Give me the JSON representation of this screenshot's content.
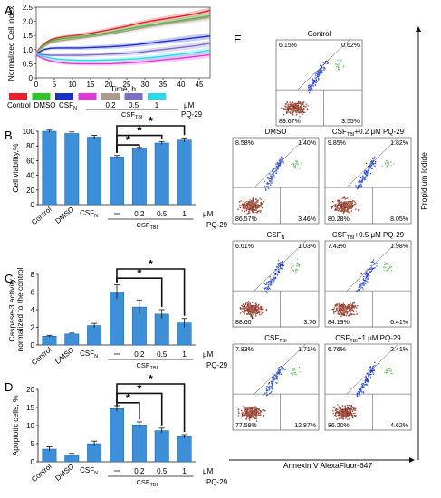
{
  "panels": {
    "A": "A",
    "B": "B",
    "C": "C",
    "D": "D",
    "E": "E"
  },
  "legend": {
    "items": [
      {
        "label": "Control",
        "color": "#e8202a"
      },
      {
        "label": "DMSO",
        "color": "#2fc52a"
      },
      {
        "label": "CSF",
        "sub": "N",
        "color": "#1c2fc9"
      },
      {
        "label": "",
        "color": "#e03ad9"
      },
      {
        "label": "0.2",
        "color": "#b09a8e"
      },
      {
        "label": "0.5",
        "color": "#7a70c9"
      },
      {
        "label": "1",
        "color": "#2ad9e6"
      }
    ],
    "unit": "μM",
    "compound": "PQ-29",
    "group": "CSF",
    "group_sub": "TBI"
  },
  "bar_tick_labels": {
    "control": "Control",
    "dmso": "DMSO",
    "csf": "CSF",
    "csf_sub": "N",
    "doses": [
      "0.2",
      "0.5",
      "1"
    ],
    "unit": "μM",
    "compound": "PQ-29",
    "group": "CSF",
    "group_sub": "TBI",
    "star": "*"
  },
  "flow": {
    "xlabel": "Annexin V AlexaFluor-647",
    "ylabel": "Propidium Iodide",
    "plots": [
      {
        "title": "Control",
        "ul": "6.15%",
        "ur": "0.62%",
        "ll": "89.67%",
        "lr": "3.55%"
      },
      {
        "title": "DMSO",
        "ul": "8.58%",
        "ur": "1.40%",
        "ll": "86.57%",
        "lr": "3.46%"
      },
      {
        "title": "CSFTBI+0.2 μM PQ-29",
        "ul": "9.85%",
        "ur": "1.82%",
        "ll": "80.28%",
        "lr": "8.05%"
      },
      {
        "title": "CSFN",
        "ul": "6.61%",
        "ur": "1.03%",
        "ll": "88.60",
        "lr": "3.76"
      },
      {
        "title": "CSFTBI+0.5 μM PQ-29",
        "ul": "7.43%",
        "ur": "1.98%",
        "ll": "84.19%",
        "lr": "6.41%"
      },
      {
        "title": "CSFTBI",
        "ul": "7.83%",
        "ur": "1.71%",
        "ll": "77.58%",
        "lr": "12.87%"
      },
      {
        "title": "CSFTBI+1 μM PQ-29",
        "ul": "6.76%",
        "ur": "2.41%",
        "ll": "86.20%",
        "lr": "4.62%"
      }
    ]
  },
  "chart_data": [
    {
      "id": "A",
      "type": "line",
      "xlabel": "Time, h",
      "ylabel": "Normalized Cell index",
      "xlim": [
        0,
        48
      ],
      "ylim": [
        0,
        2.5
      ],
      "xticks": [
        "0",
        "5",
        "10",
        "15",
        "20",
        "25",
        "30",
        "35",
        "40",
        "45"
      ],
      "yticks": [
        "0",
        "0.5",
        "1.0",
        "1.5",
        "2.0",
        "2.5"
      ],
      "series": [
        {
          "color": "#e8202a",
          "x": [
            0,
            2,
            4,
            6,
            8,
            12,
            16,
            20,
            24,
            28,
            32,
            36,
            40,
            44,
            48
          ],
          "y": [
            0.9,
            1.2,
            1.35,
            1.42,
            1.46,
            1.52,
            1.6,
            1.7,
            1.8,
            1.92,
            2.02,
            2.1,
            2.18,
            2.27,
            2.38
          ]
        },
        {
          "color": "#2fc52a",
          "x": [
            0,
            2,
            4,
            6,
            8,
            12,
            16,
            20,
            24,
            28,
            32,
            36,
            40,
            44,
            48
          ],
          "y": [
            0.9,
            1.15,
            1.3,
            1.36,
            1.4,
            1.45,
            1.52,
            1.6,
            1.7,
            1.8,
            1.88,
            1.96,
            2.04,
            2.12,
            2.2
          ]
        },
        {
          "color": "#b09a8e",
          "x": [
            0,
            2,
            4,
            6,
            8,
            12,
            16,
            20,
            24,
            28,
            32,
            36,
            40,
            44,
            48
          ],
          "y": [
            0.9,
            1.1,
            1.25,
            1.3,
            1.34,
            1.4,
            1.47,
            1.55,
            1.64,
            1.74,
            1.84,
            1.92,
            2.0,
            2.07,
            2.15
          ]
        },
        {
          "color": "#1c2fc9",
          "x": [
            0,
            2,
            4,
            6,
            8,
            12,
            16,
            20,
            24,
            28,
            32,
            36,
            40,
            44,
            48
          ],
          "y": [
            0.85,
            1.0,
            1.05,
            1.06,
            1.06,
            1.06,
            1.08,
            1.1,
            1.13,
            1.18,
            1.24,
            1.3,
            1.36,
            1.42,
            1.48
          ]
        },
        {
          "color": "#7a70c9",
          "x": [
            0,
            2,
            4,
            6,
            8,
            12,
            16,
            20,
            24,
            28,
            32,
            36,
            40,
            44,
            48
          ],
          "y": [
            0.85,
            0.82,
            0.8,
            0.8,
            0.8,
            0.8,
            0.82,
            0.84,
            0.86,
            0.9,
            0.96,
            1.02,
            1.08,
            1.14,
            1.22
          ]
        },
        {
          "color": "#2ad9e6",
          "x": [
            0,
            2,
            4,
            6,
            8,
            12,
            16,
            20,
            24,
            28,
            32,
            36,
            40,
            44,
            48
          ],
          "y": [
            0.85,
            0.76,
            0.7,
            0.66,
            0.64,
            0.62,
            0.62,
            0.63,
            0.65,
            0.68,
            0.72,
            0.78,
            0.84,
            0.9,
            0.98
          ]
        },
        {
          "color": "#e03ad9",
          "x": [
            0,
            2,
            4,
            6,
            8,
            12,
            16,
            20,
            24,
            28,
            32,
            36,
            40,
            44,
            48
          ],
          "y": [
            0.8,
            0.68,
            0.6,
            0.55,
            0.52,
            0.5,
            0.5,
            0.5,
            0.52,
            0.55,
            0.6,
            0.65,
            0.7,
            0.76,
            0.82
          ]
        }
      ]
    },
    {
      "id": "B",
      "type": "bar",
      "ylabel": "Cell viability,%",
      "ylim": [
        0,
        100
      ],
      "yticks": [
        "0",
        "20",
        "40",
        "60",
        "80",
        "100"
      ],
      "values": [
        100,
        97,
        92,
        65,
        76,
        84,
        88
      ],
      "errors": [
        1.5,
        2,
        2.5,
        2,
        2,
        2,
        3
      ],
      "significance": [
        [
          3,
          4
        ],
        [
          3,
          5
        ],
        [
          3,
          6
        ]
      ]
    },
    {
      "id": "C",
      "type": "bar",
      "ylabel": "Caspase-3 activity, normalized to the control",
      "ylim": [
        0,
        8
      ],
      "yticks": [
        "0",
        "2",
        "4",
        "6",
        "8"
      ],
      "values": [
        1,
        1.25,
        2.2,
        6.0,
        4.3,
        3.5,
        2.5
      ],
      "errors": [
        0.1,
        0.1,
        0.25,
        0.8,
        0.8,
        0.5,
        0.5
      ],
      "significance": [
        [
          3,
          5
        ],
        [
          3,
          6
        ]
      ]
    },
    {
      "id": "D",
      "type": "bar",
      "ylabel": "Apoptotic cells, %",
      "ylim": [
        0,
        20
      ],
      "yticks": [
        "0",
        "5",
        "10",
        "15",
        "20"
      ],
      "values": [
        3.5,
        1.8,
        5.0,
        14.7,
        10.2,
        8.6,
        7.0
      ],
      "errors": [
        0.6,
        0.5,
        0.7,
        0.8,
        0.8,
        0.7,
        0.5
      ],
      "significance": [
        [
          3,
          4
        ],
        [
          3,
          5
        ],
        [
          3,
          6
        ]
      ]
    }
  ]
}
